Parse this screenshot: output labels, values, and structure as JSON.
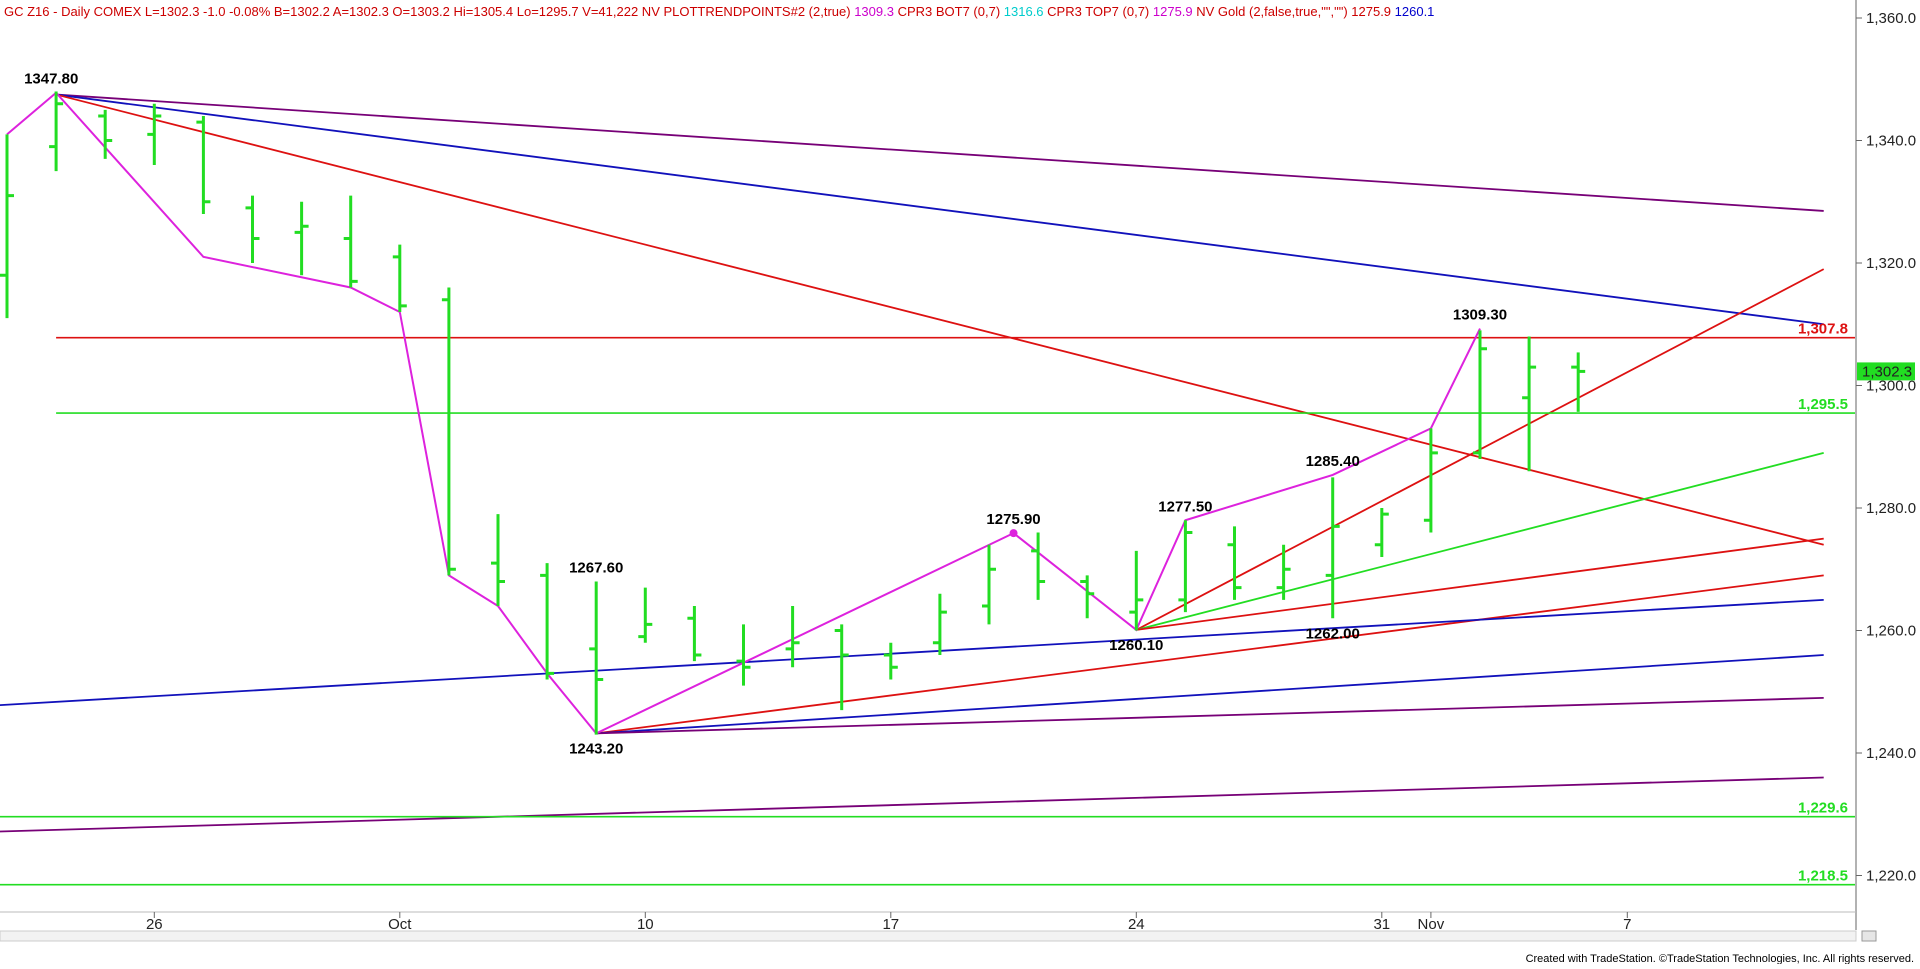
{
  "header": {
    "segments": [
      {
        "text": "GC Z16 - Daily  COMEX  L=1302.3  -1.0  -0.08%  B=1302.2  A=1302.3  O=1303.2  Hi=1305.4  Lo=1295.7  V=41,222  NV  PLOTTRENDPOINTS#2 (2,true)",
        "color": "#cc0000"
      },
      {
        "text": "1309.3",
        "color": "#cc00cc"
      },
      {
        "text": "CPR3 BOT7 (0,7)",
        "color": "#cc0000"
      },
      {
        "text": "1316.6",
        "color": "#00cccc"
      },
      {
        "text": "CPR3 TOP7 (0,7)",
        "color": "#cc0000"
      },
      {
        "text": "1275.9",
        "color": "#cc00cc"
      },
      {
        "text": "NV Gold (2,false,true,\"\",\"\")",
        "color": "#cc0000"
      },
      {
        "text": "1275.9",
        "color": "#cc0000"
      },
      {
        "text": "1260.1",
        "color": "#0000cc"
      }
    ]
  },
  "footer": {
    "credit": "Created with TradeStation. ©TradeStation Technologies, Inc. All rights reserved."
  },
  "colors": {
    "bars": "#22dd22",
    "zigzag": "#dd22dd",
    "red": "#dd1111",
    "blue": "#1111bb",
    "purple": "#770077",
    "green": "#22dd22",
    "axis": "#666666"
  },
  "chart_data": {
    "type": "ohlc",
    "instrument": "GCZ16",
    "interval": "Daily",
    "exchange": "COMEX",
    "ylim": [
      1214,
      1362
    ],
    "y_ticks": [
      "1,360.0",
      "1,340.0",
      "1,320.0",
      "1,300.0",
      "1,280.0",
      "1,260.0",
      "1,240.0",
      "1,220.0"
    ],
    "y_tick_values": [
      1360,
      1340,
      1320,
      1300,
      1280,
      1260,
      1240,
      1220
    ],
    "x_ticks": [
      {
        "label": "26",
        "index": 3
      },
      {
        "label": "Oct",
        "index": 8
      },
      {
        "label": "10",
        "index": 13
      },
      {
        "label": "17",
        "index": 18
      },
      {
        "label": "24",
        "index": 23
      },
      {
        "label": "31",
        "index": 28
      },
      {
        "label": "Nov",
        "index": 29
      },
      {
        "label": "7",
        "index": 33
      }
    ],
    "bars": [
      {
        "i": 0,
        "o": 1318,
        "h": 1341,
        "l": 1311,
        "c": 1331
      },
      {
        "i": 1,
        "o": 1339,
        "h": 1348,
        "l": 1335,
        "c": 1346
      },
      {
        "i": 2,
        "o": 1344,
        "h": 1345,
        "l": 1337,
        "c": 1340
      },
      {
        "i": 3,
        "o": 1341,
        "h": 1346,
        "l": 1336,
        "c": 1344
      },
      {
        "i": 4,
        "o": 1343,
        "h": 1344,
        "l": 1328,
        "c": 1330
      },
      {
        "i": 5,
        "o": 1329,
        "h": 1331,
        "l": 1320,
        "c": 1324
      },
      {
        "i": 6,
        "o": 1325,
        "h": 1330,
        "l": 1318,
        "c": 1326
      },
      {
        "i": 7,
        "o": 1324,
        "h": 1331,
        "l": 1316,
        "c": 1317
      },
      {
        "i": 8,
        "o": 1321,
        "h": 1323,
        "l": 1312,
        "c": 1313
      },
      {
        "i": 9,
        "o": 1314,
        "h": 1316,
        "l": 1269,
        "c": 1270
      },
      {
        "i": 10,
        "o": 1271,
        "h": 1279,
        "l": 1264,
        "c": 1268
      },
      {
        "i": 11,
        "o": 1269,
        "h": 1271,
        "l": 1252,
        "c": 1253
      },
      {
        "i": 12,
        "o": 1257,
        "h": 1268,
        "l": 1243,
        "c": 1252
      },
      {
        "i": 13,
        "o": 1259,
        "h": 1267,
        "l": 1258,
        "c": 1261
      },
      {
        "i": 14,
        "o": 1262,
        "h": 1264,
        "l": 1255,
        "c": 1256
      },
      {
        "i": 15,
        "o": 1255,
        "h": 1261,
        "l": 1251,
        "c": 1254
      },
      {
        "i": 16,
        "o": 1257,
        "h": 1264,
        "l": 1254,
        "c": 1258
      },
      {
        "i": 17,
        "o": 1260,
        "h": 1261,
        "l": 1247,
        "c": 1256
      },
      {
        "i": 18,
        "o": 1256,
        "h": 1258,
        "l": 1252,
        "c": 1254
      },
      {
        "i": 19,
        "o": 1258,
        "h": 1266,
        "l": 1256,
        "c": 1263
      },
      {
        "i": 20,
        "o": 1264,
        "h": 1274,
        "l": 1261,
        "c": 1270
      },
      {
        "i": 21,
        "o": 1273,
        "h": 1276,
        "l": 1265,
        "c": 1268
      },
      {
        "i": 22,
        "o": 1268,
        "h": 1269,
        "l": 1262,
        "c": 1266
      },
      {
        "i": 23,
        "o": 1263,
        "h": 1273,
        "l": 1260,
        "c": 1265
      },
      {
        "i": 24,
        "o": 1265,
        "h": 1278,
        "l": 1263,
        "c": 1276
      },
      {
        "i": 25,
        "o": 1274,
        "h": 1277,
        "l": 1265,
        "c": 1267
      },
      {
        "i": 26,
        "o": 1267,
        "h": 1274,
        "l": 1265,
        "c": 1270
      },
      {
        "i": 27,
        "o": 1269,
        "h": 1285,
        "l": 1262,
        "c": 1277
      },
      {
        "i": 28,
        "o": 1274,
        "h": 1280,
        "l": 1272,
        "c": 1279
      },
      {
        "i": 29,
        "o": 1278,
        "h": 1293,
        "l": 1276,
        "c": 1289
      },
      {
        "i": 30,
        "o": 1289,
        "h": 1309,
        "l": 1288,
        "c": 1306
      },
      {
        "i": 31,
        "o": 1298,
        "h": 1308,
        "l": 1286,
        "c": 1303
      },
      {
        "i": 32,
        "o": 1303,
        "h": 1305.4,
        "l": 1295.7,
        "c": 1302.3
      }
    ],
    "zigzag": [
      [
        0,
        1341
      ],
      [
        1,
        1347.8
      ],
      [
        4,
        1321
      ],
      [
        7,
        1316
      ],
      [
        8,
        1312
      ],
      [
        9,
        1269
      ],
      [
        10,
        1264
      ],
      [
        11,
        1253
      ],
      [
        12,
        1243.2
      ],
      [
        20.5,
        1275.9
      ],
      [
        23,
        1260.1
      ],
      [
        24,
        1278
      ],
      [
        27,
        1285.4
      ],
      [
        29,
        1293
      ],
      [
        30,
        1309.3
      ]
    ],
    "swing_labels": [
      {
        "text": "1347.80",
        "i": 0.9,
        "v": 1347.8,
        "pos": "above"
      },
      {
        "text": "1267.60",
        "i": 12,
        "v": 1268,
        "pos": "above"
      },
      {
        "text": "1243.20",
        "i": 12,
        "v": 1243.2,
        "pos": "below"
      },
      {
        "text": "1275.90",
        "i": 20.5,
        "v": 1275.9,
        "pos": "above"
      },
      {
        "text": "1260.10",
        "i": 23,
        "v": 1260.1,
        "pos": "below"
      },
      {
        "text": "1277.50",
        "i": 24,
        "v": 1278,
        "pos": "above"
      },
      {
        "text": "1285.40",
        "i": 27,
        "v": 1285.4,
        "pos": "above"
      },
      {
        "text": "1262.00",
        "i": 27,
        "v": 1262,
        "pos": "below"
      },
      {
        "text": "1309.30",
        "i": 30,
        "v": 1309.3,
        "pos": "above"
      }
    ],
    "trend_lines": [
      {
        "color": "purple",
        "from": [
          1,
          1347.5
        ],
        "to": [
          37,
          1328.5
        ]
      },
      {
        "color": "blue",
        "from": [
          1,
          1347.5
        ],
        "to": [
          37,
          1310
        ]
      },
      {
        "color": "red",
        "from": [
          1,
          1347.5
        ],
        "to": [
          37,
          1274
        ]
      },
      {
        "color": "red",
        "from": [
          23,
          1260.1
        ],
        "to": [
          37,
          1319
        ]
      },
      {
        "color": "green",
        "from": [
          23,
          1260.1
        ],
        "to": [
          37,
          1289
        ]
      },
      {
        "color": "red",
        "from": [
          23,
          1260.1
        ],
        "to": [
          37,
          1275
        ]
      },
      {
        "color": "red",
        "from": [
          12,
          1243.2
        ],
        "to": [
          37,
          1269
        ]
      },
      {
        "color": "blue",
        "from": [
          -3,
          1246.5
        ],
        "to": [
          37,
          1265
        ]
      },
      {
        "color": "blue",
        "from": [
          12,
          1243.2
        ],
        "to": [
          37,
          1256
        ]
      },
      {
        "color": "purple",
        "from": [
          12,
          1243.2
        ],
        "to": [
          37,
          1249
        ]
      },
      {
        "color": "purple",
        "from": [
          -3,
          1226.5
        ],
        "to": [
          37,
          1236
        ]
      }
    ],
    "horizontal_levels": [
      {
        "value": 1307.8,
        "label": "1,307.8",
        "color": "red",
        "from": 1
      },
      {
        "value": 1295.5,
        "label": "1,295.5",
        "color": "green",
        "from": 1
      },
      {
        "value": 1229.6,
        "label": "1,229.6",
        "color": "green",
        "from": -3
      },
      {
        "value": 1218.5,
        "label": "1,218.5",
        "color": "green",
        "from": -3
      }
    ],
    "last_price": {
      "value": 1302.3,
      "label": "1,302.3"
    }
  }
}
